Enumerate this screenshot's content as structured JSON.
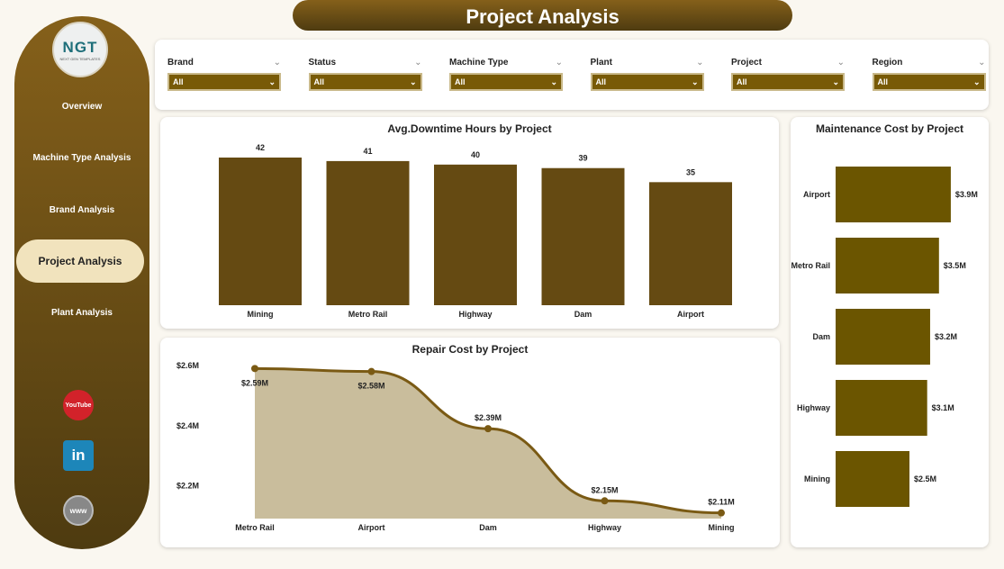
{
  "title": "Project Analysis",
  "logo": {
    "text": "NGT",
    "sub": "NEXT GEN TEMPLATES"
  },
  "nav": [
    {
      "label": "Overview"
    },
    {
      "label": "Machine Type Analysis"
    },
    {
      "label": "Brand Analysis"
    },
    {
      "label": "Project Analysis",
      "active": true
    },
    {
      "label": "Plant Analysis"
    }
  ],
  "social": [
    {
      "icon": "youtube-icon",
      "label": "YouTube"
    },
    {
      "icon": "linkedin-icon",
      "label": "in"
    },
    {
      "icon": "globe-icon",
      "label": "www"
    }
  ],
  "filters": [
    {
      "label": "Brand",
      "value": "All"
    },
    {
      "label": "Status",
      "value": "All"
    },
    {
      "label": "Machine Type",
      "value": "All"
    },
    {
      "label": "Plant",
      "value": "All"
    },
    {
      "label": "Project",
      "value": "All"
    },
    {
      "label": "Region",
      "value": "All"
    }
  ],
  "colors": {
    "accent": "#85601a",
    "bar": "#654a12",
    "hbar": "#6b5500",
    "area": "#c9bd9c",
    "line": "#7a5a14"
  },
  "chart_data": [
    {
      "type": "bar",
      "title": "Avg.Downtime Hours by Project",
      "categories": [
        "Mining",
        "Metro Rail",
        "Highway",
        "Dam",
        "Airport"
      ],
      "values": [
        42,
        41,
        40,
        39,
        35
      ],
      "data_labels": [
        "42",
        "41",
        "40",
        "39",
        "35"
      ],
      "ylim": [
        0,
        42
      ]
    },
    {
      "type": "area",
      "title": "Repair Cost by Project",
      "categories": [
        "Metro Rail",
        "Airport",
        "Dam",
        "Highway",
        "Mining"
      ],
      "values": [
        2.59,
        2.58,
        2.39,
        2.15,
        2.11
      ],
      "data_labels": [
        "$2.59M",
        "$2.58M",
        "$2.39M",
        "$2.15M",
        "$2.11M"
      ],
      "y_ticks": [
        "$2.6M",
        "$2.4M",
        "$2.2M"
      ],
      "y_tick_values": [
        2.6,
        2.4,
        2.2
      ]
    },
    {
      "type": "bar",
      "orientation": "horizontal",
      "title": "Maintenance Cost by Project",
      "categories": [
        "Airport",
        "Metro Rail",
        "Dam",
        "Highway",
        "Mining"
      ],
      "values": [
        3.9,
        3.5,
        3.2,
        3.1,
        2.5
      ],
      "data_labels": [
        "$3.9M",
        "$3.5M",
        "$3.2M",
        "$3.1M",
        "$2.5M"
      ]
    }
  ]
}
